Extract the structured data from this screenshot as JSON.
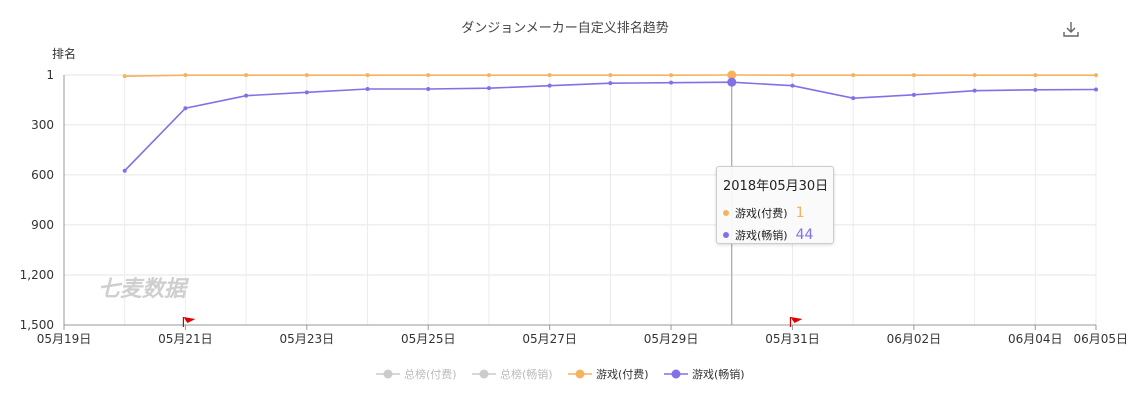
{
  "chart_data": {
    "type": "line",
    "title": "ダンジョンメーカー自定义排名趋势",
    "ylabel": "排名",
    "xlabel": "",
    "ylim": [
      1,
      1500
    ],
    "y_inverted": true,
    "y_ticks": [
      "1",
      "300",
      "600",
      "900",
      "1,200",
      "1,500"
    ],
    "y_tick_values": [
      1,
      300,
      600,
      900,
      1200,
      1500
    ],
    "x_ticks": [
      "05月19日",
      "05月21日",
      "05月23日",
      "05月25日",
      "05月27日",
      "05月29日",
      "05月31日",
      "06月02日",
      "06月04日",
      "06月05日"
    ],
    "x_tick_days": [
      0,
      2,
      4,
      6,
      8,
      10,
      12,
      14,
      16,
      17
    ],
    "x": [
      "2018-05-20",
      "2018-05-21",
      "2018-05-22",
      "2018-05-23",
      "2018-05-24",
      "2018-05-25",
      "2018-05-26",
      "2018-05-27",
      "2018-05-28",
      "2018-05-29",
      "2018-05-30",
      "2018-05-31",
      "2018-06-01",
      "2018-06-02",
      "2018-06-03",
      "2018-06-04",
      "2018-06-05"
    ],
    "series": [
      {
        "name": "游戏(付费)",
        "color": "#f5b25f",
        "values": [
          8,
          2,
          2,
          2,
          2,
          2,
          2,
          2,
          2,
          2,
          1,
          2,
          2,
          2,
          2,
          2,
          2
        ]
      },
      {
        "name": "游戏(畅销)",
        "color": "#8470e6",
        "values": [
          575,
          200,
          125,
          105,
          85,
          85,
          80,
          65,
          50,
          47,
          44,
          65,
          140,
          120,
          95,
          90,
          88
        ]
      }
    ],
    "legend": {
      "placement": "bottom-center",
      "items": [
        {
          "name": "总榜(付费)",
          "color": "#cccccc",
          "active": false
        },
        {
          "name": "总榜(畅销)",
          "color": "#cccccc",
          "active": false
        },
        {
          "name": "游戏(付费)",
          "color": "#f5b25f",
          "active": true
        },
        {
          "name": "游戏(畅销)",
          "color": "#8470e6",
          "active": true
        }
      ]
    },
    "flag_markers": [
      "2018-05-21",
      "2018-05-31"
    ],
    "hover_index": 10,
    "grid": true,
    "watermark": "七麦数据"
  },
  "tooltip": {
    "title": "2018年05月30日",
    "rows": [
      {
        "label": "游戏(付费)",
        "value": "1",
        "color": "#f5b25f"
      },
      {
        "label": "游戏(畅销)",
        "value": "44",
        "color": "#8470e6"
      }
    ]
  },
  "toolbar": {
    "download_icon": "download-icon"
  }
}
